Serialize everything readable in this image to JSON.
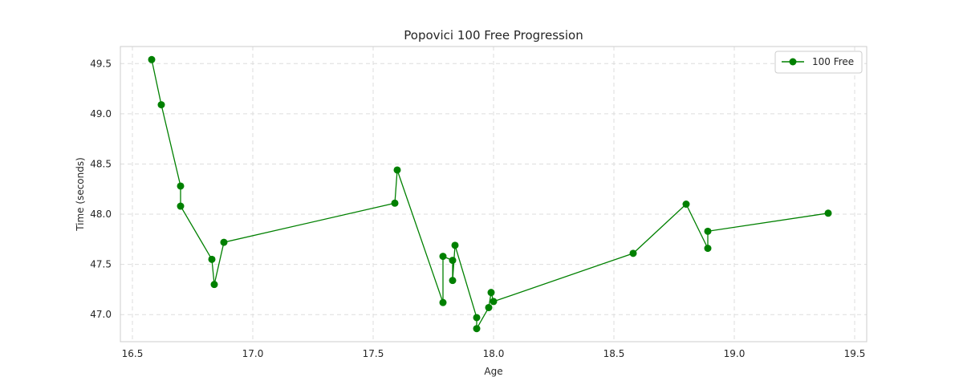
{
  "chart_data": {
    "type": "line",
    "title": "Popovici 100 Free Progression",
    "xlabel": "Age",
    "ylabel": "Time (seconds)",
    "xlim": [
      16.45,
      19.55
    ],
    "ylim": [
      46.73,
      49.67
    ],
    "xticks": [
      "16.5",
      "17.0",
      "17.5",
      "18.0",
      "18.5",
      "19.0",
      "19.5"
    ],
    "yticks": [
      "47.0",
      "47.5",
      "48.0",
      "48.5",
      "49.0",
      "49.5"
    ],
    "grid": true,
    "legend_position": "top-right",
    "color": "#008000",
    "series": [
      {
        "name": "100 Free",
        "x": [
          16.58,
          16.62,
          16.7,
          16.7,
          16.83,
          16.84,
          16.88,
          17.59,
          17.6,
          17.79,
          17.79,
          17.83,
          17.83,
          17.84,
          17.93,
          17.93,
          17.98,
          17.99,
          18.0,
          18.58,
          18.8,
          18.89,
          18.89,
          19.39
        ],
        "y": [
          49.54,
          49.09,
          48.28,
          48.08,
          47.55,
          47.3,
          47.72,
          48.11,
          48.44,
          47.12,
          47.58,
          47.54,
          47.34,
          47.69,
          46.97,
          46.86,
          47.07,
          47.22,
          47.13,
          47.61,
          48.1,
          47.66,
          47.83,
          48.01
        ]
      }
    ]
  }
}
